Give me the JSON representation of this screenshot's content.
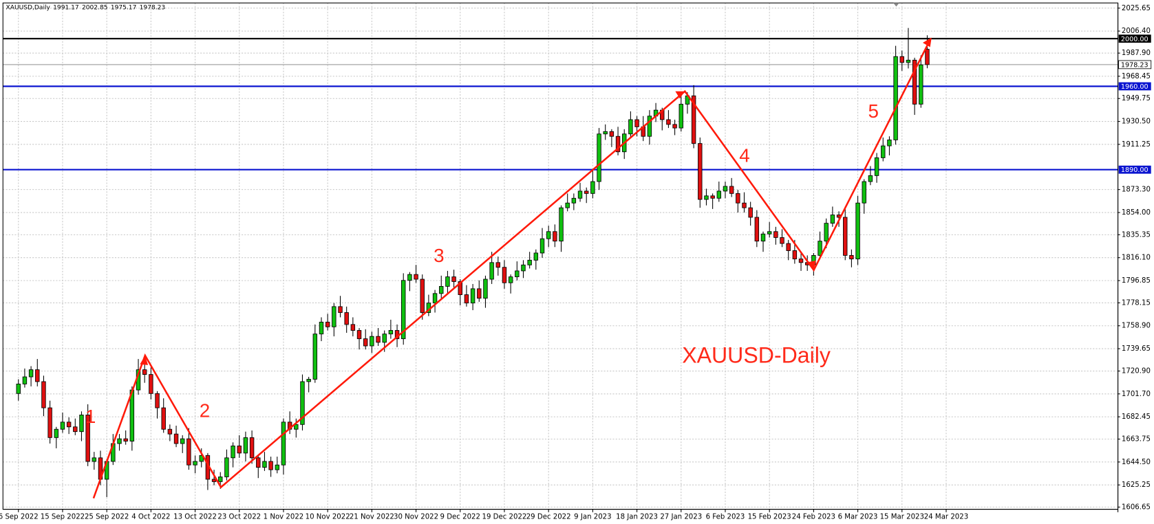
{
  "chart_data": {
    "type": "candlestick",
    "title": "XAUUSD,Daily",
    "categories": [
      "6 Sep 2022",
      null,
      null,
      null,
      null,
      null,
      null,
      "15 Sep 2022",
      null,
      null,
      null,
      null,
      null,
      null,
      "25 Sep 2022",
      null,
      null,
      null,
      null,
      null,
      null,
      "4 Oct 2022",
      null,
      null,
      null,
      null,
      null,
      null,
      "13 Oct 2022",
      null,
      null,
      null,
      null,
      null,
      null,
      "23 Oct 2022",
      null,
      null,
      null,
      null,
      null,
      null,
      "1 Nov 2022",
      null,
      null,
      null,
      null,
      null,
      null,
      "10 Nov 2022",
      null,
      null,
      null,
      null,
      null,
      null,
      "21 Nov 2022",
      null,
      null,
      null,
      null,
      null,
      null,
      "30 Nov 2022",
      null,
      null,
      null,
      null,
      null,
      null,
      "9 Dec 2022",
      null,
      null,
      null,
      null,
      null,
      null,
      "19 Dec 2022",
      null,
      null,
      null,
      null,
      null,
      null,
      "29 Dec 2022",
      null,
      null,
      null,
      null,
      null,
      null,
      "9 Jan 2023",
      null,
      null,
      null,
      null,
      null,
      null,
      "18 Jan 2023",
      null,
      null,
      null,
      null,
      null,
      null,
      "27 Jan 2023",
      null,
      null,
      null,
      null,
      null,
      null,
      "6 Feb 2023",
      null,
      null,
      null,
      null,
      null,
      null,
      "15 Feb 2023",
      null,
      null,
      null,
      null,
      null,
      null,
      "24 Feb 2023",
      null,
      null,
      null,
      null,
      null,
      null,
      "6 Mar 2023",
      null,
      null,
      null,
      null,
      null,
      null,
      "15 Mar 2023",
      null,
      null,
      null,
      null,
      null,
      null,
      "24 Mar 2023"
    ],
    "open": [
      1702,
      1710,
      1716,
      1722,
      1712,
      1690,
      1665,
      1672,
      1678,
      1674,
      1670,
      1684,
      1645,
      1648,
      1630,
      1645,
      1660,
      1664,
      1662,
      1705,
      1722,
      1718,
      1702,
      1690,
      1672,
      1668,
      1660,
      1664,
      1642,
      1645,
      1650,
      1630,
      1628,
      1632,
      1648,
      1658,
      1652,
      1665,
      1648,
      1640,
      1645,
      1638,
      1642,
      1678,
      1672,
      1676,
      1712,
      1714,
      1752,
      1762,
      1758,
      1775,
      1770,
      1760,
      1755,
      1748,
      1742,
      1750,
      1745,
      1752,
      1755,
      1748,
      1797,
      1802,
      1798,
      1770,
      1778,
      1786,
      1792,
      1800,
      1796,
      1785,
      1778,
      1790,
      1782,
      1798,
      1812,
      1808,
      1795,
      1800,
      1805,
      1810,
      1814,
      1820,
      1832,
      1838,
      1830,
      1858,
      1862,
      1866,
      1872,
      1870,
      1880,
      1920,
      1922,
      1918,
      1905,
      1920,
      1932,
      1926,
      1918,
      1935,
      1940,
      1932,
      1928,
      1925,
      1945,
      1952,
      1912,
      1865,
      1868,
      1866,
      1872,
      1876,
      1870,
      1862,
      1858,
      1850,
      1830,
      1836,
      1838,
      1833,
      1828,
      1822,
      1815,
      1812,
      1810,
      1818,
      1830,
      1845,
      1852,
      1850,
      1818,
      1815,
      1862,
      1880,
      1885,
      1900,
      1910,
      1915,
      1985,
      1980,
      1982,
      1945,
      1991.17,
      null,
      null,
      null
    ],
    "high": [
      1714,
      1723,
      1725,
      1731,
      1717,
      1696,
      1674,
      1686,
      1682,
      1681,
      1687,
      1693,
      1653,
      1654,
      1647,
      1668,
      1668,
      1671,
      1708,
      1731,
      1727,
      1724,
      1704,
      1698,
      1676,
      1675,
      1667,
      1673,
      1650,
      1656,
      1652,
      1638,
      1636,
      1655,
      1661,
      1667,
      1670,
      1671,
      1650,
      1653,
      1649,
      1649,
      1681,
      1687,
      1681,
      1718,
      1716,
      1760,
      1766,
      1769,
      1778,
      1784,
      1775,
      1766,
      1757,
      1756,
      1754,
      1757,
      1755,
      1764,
      1760,
      1803,
      1804,
      1810,
      1802,
      1785,
      1789,
      1801,
      1805,
      1806,
      1798,
      1793,
      1794,
      1797,
      1801,
      1821,
      1817,
      1814,
      1802,
      1813,
      1814,
      1821,
      1823,
      1841,
      1843,
      1844,
      1860,
      1870,
      1870,
      1879,
      1875,
      1889,
      1925,
      1928,
      1924,
      1926,
      1924,
      1939,
      1935,
      1935,
      1940,
      1946,
      1942,
      1940,
      1932,
      1952,
      1955,
      1961,
      1917,
      1874,
      1870,
      1880,
      1880,
      1883,
      1873,
      1871,
      1863,
      1856,
      1838,
      1846,
      1842,
      1840,
      1831,
      1831,
      1820,
      1818,
      1820,
      1838,
      1849,
      1859,
      1855,
      1859,
      1823,
      1868,
      1882,
      1893,
      1904,
      1917,
      1918,
      1994,
      1990,
      2009,
      1984,
      1986,
      2002.85,
      null,
      null,
      null
    ],
    "low": [
      1696,
      1707,
      1708,
      1708,
      1683,
      1660,
      1656,
      1669,
      1668,
      1667,
      1662,
      1641,
      1638,
      1625,
      1615,
      1642,
      1654,
      1659,
      1654,
      1701,
      1711,
      1697,
      1681,
      1669,
      1662,
      1657,
      1652,
      1638,
      1635,
      1640,
      1621,
      1625,
      1622,
      1629,
      1640,
      1648,
      1645,
      1643,
      1631,
      1637,
      1632,
      1635,
      1634,
      1668,
      1665,
      1671,
      1703,
      1711,
      1746,
      1755,
      1750,
      1766,
      1753,
      1750,
      1739,
      1739,
      1736,
      1742,
      1737,
      1748,
      1741,
      1743,
      1788,
      1795,
      1764,
      1767,
      1770,
      1782,
      1785,
      1791,
      1776,
      1775,
      1772,
      1779,
      1774,
      1794,
      1801,
      1790,
      1786,
      1797,
      1799,
      1807,
      1806,
      1816,
      1825,
      1825,
      1821,
      1855,
      1856,
      1863,
      1862,
      1866,
      1873,
      1915,
      1909,
      1902,
      1899,
      1917,
      1918,
      1914,
      1911,
      1930,
      1923,
      1925,
      1919,
      1922,
      1937,
      1908,
      1858,
      1860,
      1857,
      1863,
      1866,
      1867,
      1854,
      1854,
      1843,
      1825,
      1821,
      1833,
      1827,
      1825,
      1814,
      1811,
      1805,
      1805,
      1801,
      1815,
      1824,
      1842,
      1842,
      1814,
      1808,
      1810,
      1853,
      1877,
      1879,
      1897,
      1902,
      1911,
      1973,
      1975,
      1936,
      1942,
      1975.17,
      null,
      null,
      null
    ],
    "close": [
      1710,
      1716,
      1722,
      1712,
      1690,
      1665,
      1672,
      1678,
      1674,
      1670,
      1684,
      1645,
      1648,
      1630,
      1645,
      1660,
      1664,
      1662,
      1705,
      1722,
      1718,
      1702,
      1690,
      1672,
      1668,
      1660,
      1664,
      1642,
      1645,
      1650,
      1630,
      1628,
      1632,
      1648,
      1658,
      1652,
      1665,
      1648,
      1640,
      1645,
      1638,
      1642,
      1678,
      1672,
      1676,
      1712,
      1714,
      1752,
      1762,
      1758,
      1775,
      1770,
      1760,
      1755,
      1748,
      1742,
      1750,
      1745,
      1752,
      1755,
      1748,
      1797,
      1802,
      1798,
      1770,
      1778,
      1786,
      1792,
      1800,
      1796,
      1785,
      1778,
      1790,
      1782,
      1798,
      1812,
      1808,
      1795,
      1800,
      1805,
      1810,
      1814,
      1820,
      1832,
      1838,
      1830,
      1858,
      1862,
      1866,
      1872,
      1870,
      1880,
      1920,
      1922,
      1918,
      1905,
      1920,
      1932,
      1926,
      1918,
      1935,
      1940,
      1932,
      1928,
      1925,
      1945,
      1952,
      1912,
      1865,
      1868,
      1866,
      1872,
      1876,
      1870,
      1862,
      1858,
      1850,
      1830,
      1836,
      1838,
      1833,
      1828,
      1822,
      1815,
      1812,
      1810,
      1818,
      1830,
      1845,
      1852,
      1850,
      1818,
      1815,
      1862,
      1880,
      1885,
      1900,
      1910,
      1915,
      1985,
      1980,
      1982,
      1945,
      1978,
      1978.23,
      null,
      null,
      null
    ],
    "up_color": "#10c010",
    "down_color": "#e01010",
    "ylim": [
      1604.8,
      2030
    ],
    "yticks": [
      2025.65,
      {
        "value": 2006.4,
        "label": "2006.40"
      },
      {
        "value": 1987.9,
        "label": "1987.90"
      },
      1968.45,
      1949.75,
      {
        "value": 1930.5,
        "label": "1930.50"
      },
      1911.25,
      {
        "value": 1873.3,
        "label": "1873.30"
      },
      {
        "value": 1854,
        "label": "1854.00"
      },
      1835.35,
      {
        "value": 1816.1,
        "label": "1816.10"
      },
      1796.85,
      1778.15,
      {
        "value": 1758.9,
        "label": "1758.90"
      },
      1739.65,
      {
        "value": 1720.9,
        "label": "1720.90"
      },
      {
        "value": 1701.7,
        "label": "1701.70"
      },
      1682.45,
      1663.75,
      {
        "value": 1644.5,
        "label": "1644.50"
      },
      1625.25,
      1606.65
    ],
    "levels": [
      {
        "value": 2000,
        "label": "2000.00",
        "color": "#000000"
      },
      {
        "value": 1960,
        "label": "1960.00",
        "color": "#0a14d0"
      },
      {
        "value": 1890,
        "label": "1890.00",
        "color": "#0a14d0"
      }
    ],
    "annotations": [
      "1",
      "2",
      "3",
      "4",
      "5",
      "XAUUSD-Daily"
    ],
    "grid": true
  }
}
